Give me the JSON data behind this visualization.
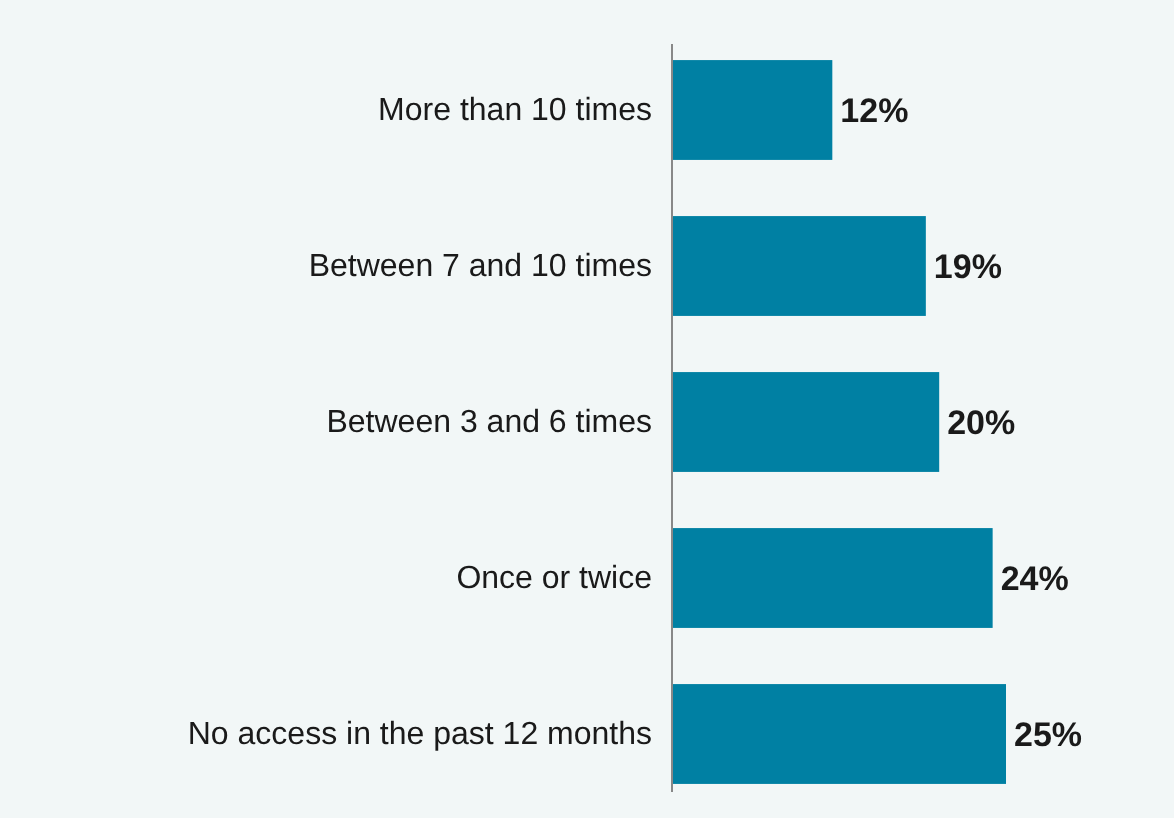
{
  "chart_data": {
    "type": "bar",
    "orientation": "horizontal",
    "categories": [
      "More than 10 times",
      "Between 7 and 10 times",
      "Between 3 and 6 times",
      "Once or twice",
      "No access in the past 12 months"
    ],
    "values": [
      12,
      19,
      20,
      24,
      25
    ],
    "color": "#0080a3",
    "data_labels": true,
    "value_labels": [
      "12%",
      "19%",
      "20%",
      "24%",
      "25%"
    ],
    "tick_labels": "y"
  }
}
